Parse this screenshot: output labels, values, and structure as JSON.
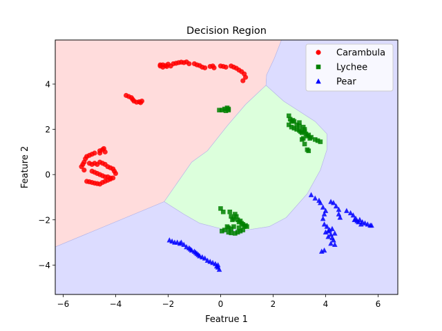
{
  "chart_data": {
    "type": "scatter",
    "title": "Decision Region",
    "xlabel": "Featrue 1",
    "ylabel": "Feature 2",
    "xlim": [
      -6.3,
      6.75
    ],
    "ylim": [
      -5.3,
      5.95
    ],
    "xticks": [
      -6,
      -4,
      -2,
      0,
      2,
      4,
      6
    ],
    "yticks": [
      -4,
      -2,
      0,
      2,
      4
    ],
    "grid": false,
    "legend_position": "top-right",
    "regions": [
      {
        "class": "Carambula",
        "color": "#ffdcdc",
        "polygon": [
          [
            -6.3,
            5.95
          ],
          [
            2.32,
            5.95
          ],
          [
            2.05,
            5.15
          ],
          [
            1.75,
            4.4
          ],
          [
            1.73,
            3.95
          ],
          [
            0.95,
            3.1
          ],
          [
            0.25,
            2.15
          ],
          [
            -0.5,
            1.05
          ],
          [
            -1.1,
            0.55
          ],
          [
            -2.15,
            -1.2
          ],
          [
            -6.3,
            -3.2
          ]
        ]
      },
      {
        "class": "Lychee",
        "color": "#dcffdc",
        "polygon": [
          [
            1.73,
            3.95
          ],
          [
            2.4,
            3.25
          ],
          [
            3.6,
            2.35
          ],
          [
            4.05,
            1.8
          ],
          [
            4.05,
            1.1
          ],
          [
            3.8,
            0.2
          ],
          [
            3.3,
            -0.85
          ],
          [
            2.5,
            -1.9
          ],
          [
            1.85,
            -2.3
          ],
          [
            1.0,
            -2.45
          ],
          [
            0.1,
            -2.42
          ],
          [
            -0.8,
            -2.15
          ],
          [
            -1.4,
            -1.75
          ],
          [
            -2.15,
            -1.2
          ],
          [
            -1.1,
            0.55
          ],
          [
            -0.5,
            1.05
          ],
          [
            0.25,
            2.15
          ],
          [
            0.95,
            3.1
          ]
        ]
      },
      {
        "class": "Pear",
        "color": "#dcdcff",
        "polygon": [
          [
            2.32,
            5.95
          ],
          [
            6.75,
            5.95
          ],
          [
            6.75,
            -5.3
          ],
          [
            -6.3,
            -5.3
          ],
          [
            -6.3,
            -3.2
          ],
          [
            -2.15,
            -1.2
          ],
          [
            -1.4,
            -1.75
          ],
          [
            -0.8,
            -2.15
          ],
          [
            0.1,
            -2.42
          ],
          [
            1.0,
            -2.45
          ],
          [
            1.85,
            -2.3
          ],
          [
            2.5,
            -1.9
          ],
          [
            3.3,
            -0.85
          ],
          [
            3.8,
            0.2
          ],
          [
            4.05,
            1.1
          ],
          [
            4.05,
            1.8
          ],
          [
            3.6,
            2.35
          ],
          [
            2.4,
            3.25
          ],
          [
            1.73,
            3.95
          ],
          [
            1.75,
            4.4
          ],
          [
            2.05,
            5.15
          ]
        ]
      }
    ],
    "series": [
      {
        "name": "Carambula",
        "marker": "circle",
        "color": "#ff0000",
        "points": [
          [
            -2.3,
            4.8
          ],
          [
            -2.2,
            4.85
          ],
          [
            -2.1,
            4.82
          ],
          [
            -2.0,
            4.88
          ],
          [
            -1.9,
            4.8
          ],
          [
            -1.8,
            4.9
          ],
          [
            -1.7,
            4.92
          ],
          [
            -1.6,
            4.95
          ],
          [
            -1.5,
            4.97
          ],
          [
            -1.4,
            4.95
          ],
          [
            -1.3,
            4.98
          ],
          [
            -1.2,
            4.9
          ],
          [
            -1.0,
            4.9
          ],
          [
            -0.9,
            4.85
          ],
          [
            -0.8,
            4.82
          ],
          [
            -0.7,
            4.75
          ],
          [
            -0.6,
            4.72
          ],
          [
            -0.4,
            4.78
          ],
          [
            -0.3,
            4.8
          ],
          [
            -0.25,
            4.72
          ],
          [
            0.0,
            4.8
          ],
          [
            0.1,
            4.78
          ],
          [
            0.2,
            4.75
          ],
          [
            0.4,
            4.8
          ],
          [
            0.5,
            4.75
          ],
          [
            0.6,
            4.7
          ],
          [
            0.7,
            4.62
          ],
          [
            0.8,
            4.55
          ],
          [
            0.9,
            4.45
          ],
          [
            0.95,
            4.3
          ],
          [
            0.85,
            4.15
          ],
          [
            -2.3,
            4.85
          ],
          [
            -2.2,
            4.75
          ],
          [
            -2.05,
            4.78
          ],
          [
            -3.6,
            3.5
          ],
          [
            -3.5,
            3.45
          ],
          [
            -3.4,
            3.4
          ],
          [
            -3.35,
            3.32
          ],
          [
            -3.3,
            3.25
          ],
          [
            -3.2,
            3.2
          ],
          [
            -3.1,
            3.22
          ],
          [
            -3.0,
            3.25
          ],
          [
            -3.05,
            3.18
          ],
          [
            -4.6,
            1.05
          ],
          [
            -4.5,
            1.1
          ],
          [
            -4.45,
            1.15
          ],
          [
            -4.4,
            1.0
          ],
          [
            -4.6,
            0.95
          ],
          [
            -4.8,
            0.95
          ],
          [
            -4.9,
            0.9
          ],
          [
            -5.0,
            0.85
          ],
          [
            -5.1,
            0.8
          ],
          [
            -5.15,
            0.7
          ],
          [
            -5.2,
            0.55
          ],
          [
            -5.25,
            0.45
          ],
          [
            -5.3,
            0.35
          ],
          [
            -5.2,
            0.2
          ],
          [
            -5.0,
            0.5
          ],
          [
            -4.9,
            0.45
          ],
          [
            -4.8,
            0.5
          ],
          [
            -4.7,
            0.45
          ],
          [
            -4.6,
            0.55
          ],
          [
            -4.5,
            0.5
          ],
          [
            -4.4,
            0.45
          ],
          [
            -4.3,
            0.35
          ],
          [
            -4.2,
            0.3
          ],
          [
            -4.1,
            0.25
          ],
          [
            -4.05,
            0.15
          ],
          [
            -4.0,
            0.05
          ],
          [
            -4.9,
            0.15
          ],
          [
            -4.8,
            0.1
          ],
          [
            -4.7,
            0.05
          ],
          [
            -4.6,
            0.0
          ],
          [
            -4.5,
            -0.05
          ],
          [
            -4.4,
            -0.1
          ],
          [
            -4.3,
            -0.1
          ],
          [
            -4.2,
            -0.15
          ],
          [
            -5.1,
            -0.3
          ],
          [
            -5.0,
            -0.32
          ],
          [
            -4.9,
            -0.35
          ],
          [
            -4.8,
            -0.38
          ],
          [
            -4.7,
            -0.4
          ],
          [
            -4.6,
            -0.42
          ],
          [
            -4.5,
            -0.35
          ],
          [
            -4.4,
            -0.3
          ],
          [
            -4.3,
            -0.25
          ],
          [
            -4.2,
            -0.2
          ],
          [
            -4.1,
            -0.15
          ]
        ]
      },
      {
        "name": "Lychee",
        "marker": "square",
        "color": "#008000",
        "points": [
          [
            -0.05,
            2.85
          ],
          [
            0.05,
            2.85
          ],
          [
            0.15,
            2.9
          ],
          [
            0.25,
            2.95
          ],
          [
            0.3,
            2.9
          ],
          [
            0.2,
            2.82
          ],
          [
            0.3,
            2.85
          ],
          [
            2.6,
            2.6
          ],
          [
            2.65,
            2.45
          ],
          [
            2.7,
            2.35
          ],
          [
            2.6,
            2.2
          ],
          [
            2.7,
            2.1
          ],
          [
            2.8,
            2.05
          ],
          [
            2.9,
            2.0
          ],
          [
            3.0,
            1.95
          ],
          [
            3.05,
            1.9
          ],
          [
            3.1,
            1.85
          ],
          [
            3.15,
            2.1
          ],
          [
            3.2,
            2.0
          ],
          [
            3.25,
            1.8
          ],
          [
            3.3,
            1.7
          ],
          [
            3.35,
            1.75
          ],
          [
            3.4,
            1.6
          ],
          [
            3.45,
            1.65
          ],
          [
            3.6,
            1.55
          ],
          [
            3.7,
            1.5
          ],
          [
            3.8,
            1.45
          ],
          [
            3.1,
            1.55
          ],
          [
            3.2,
            1.35
          ],
          [
            3.3,
            1.1
          ],
          [
            3.35,
            1.05
          ],
          [
            2.8,
            2.35
          ],
          [
            2.9,
            2.2
          ],
          [
            3.0,
            2.3
          ],
          [
            3.2,
            1.9
          ],
          [
            2.75,
            2.4
          ],
          [
            3.15,
            1.6
          ],
          [
            3.0,
            2.15
          ],
          [
            0.0,
            -1.5
          ],
          [
            0.1,
            -1.65
          ],
          [
            0.35,
            -1.65
          ],
          [
            0.4,
            -1.85
          ],
          [
            0.45,
            -2.0
          ],
          [
            0.5,
            -1.95
          ],
          [
            0.55,
            -1.75
          ],
          [
            0.6,
            -1.85
          ],
          [
            0.65,
            -2.0
          ],
          [
            0.7,
            -2.1
          ],
          [
            0.75,
            -2.05
          ],
          [
            0.8,
            -2.15
          ],
          [
            0.85,
            -2.2
          ],
          [
            0.9,
            -2.3
          ],
          [
            0.95,
            -2.25
          ],
          [
            1.0,
            -2.3
          ],
          [
            0.05,
            -2.5
          ],
          [
            0.15,
            -2.45
          ],
          [
            0.3,
            -2.55
          ],
          [
            0.4,
            -2.58
          ],
          [
            0.55,
            -2.6
          ],
          [
            0.65,
            -2.55
          ],
          [
            0.75,
            -2.5
          ],
          [
            0.85,
            -2.45
          ],
          [
            0.3,
            -2.35
          ],
          [
            0.25,
            -2.3
          ],
          [
            0.4,
            -2.4
          ],
          [
            0.5,
            -2.3
          ],
          [
            0.7,
            -2.35
          ]
        ]
      },
      {
        "name": "Pear",
        "marker": "triangle",
        "color": "#0000ff",
        "points": [
          [
            -1.95,
            -2.9
          ],
          [
            -1.85,
            -2.95
          ],
          [
            -1.75,
            -3.0
          ],
          [
            -1.65,
            -3.0
          ],
          [
            -1.55,
            -3.05
          ],
          [
            -1.5,
            -3.0
          ],
          [
            -1.4,
            -3.1
          ],
          [
            -1.3,
            -3.2
          ],
          [
            -1.2,
            -3.25
          ],
          [
            -1.15,
            -3.3
          ],
          [
            -1.1,
            -3.35
          ],
          [
            -1.0,
            -3.4
          ],
          [
            -0.95,
            -3.45
          ],
          [
            -0.9,
            -3.5
          ],
          [
            -0.85,
            -3.55
          ],
          [
            -0.8,
            -3.6
          ],
          [
            -0.7,
            -3.65
          ],
          [
            -0.6,
            -3.7
          ],
          [
            -0.5,
            -3.8
          ],
          [
            -0.4,
            -3.85
          ],
          [
            -0.3,
            -3.9
          ],
          [
            -0.2,
            -3.95
          ],
          [
            -0.15,
            -4.05
          ],
          [
            -0.1,
            -4.1
          ],
          [
            -0.05,
            -4.2
          ],
          [
            -0.1,
            -4.0
          ],
          [
            3.45,
            -0.9
          ],
          [
            3.6,
            -1.05
          ],
          [
            3.75,
            -1.15
          ],
          [
            3.8,
            -1.25
          ],
          [
            3.9,
            -1.45
          ],
          [
            4.0,
            -1.6
          ],
          [
            4.2,
            -1.2
          ],
          [
            4.3,
            -1.25
          ],
          [
            4.4,
            -1.4
          ],
          [
            4.5,
            -1.55
          ],
          [
            4.5,
            -1.75
          ],
          [
            4.55,
            -1.9
          ],
          [
            3.95,
            -1.75
          ],
          [
            3.9,
            -1.95
          ],
          [
            3.95,
            -2.2
          ],
          [
            4.05,
            -2.3
          ],
          [
            4.1,
            -2.5
          ],
          [
            4.15,
            -2.45
          ],
          [
            4.2,
            -2.65
          ],
          [
            4.25,
            -2.8
          ],
          [
            4.3,
            -2.9
          ],
          [
            4.2,
            -3.05
          ],
          [
            4.1,
            -2.75
          ],
          [
            4.0,
            -2.55
          ],
          [
            3.95,
            -3.35
          ],
          [
            3.85,
            -3.4
          ],
          [
            4.35,
            -2.6
          ],
          [
            4.25,
            -2.4
          ],
          [
            4.35,
            -3.1
          ],
          [
            4.8,
            -1.6
          ],
          [
            4.95,
            -1.7
          ],
          [
            5.05,
            -1.8
          ],
          [
            5.1,
            -2.0
          ],
          [
            5.2,
            -2.05
          ],
          [
            5.15,
            -1.95
          ],
          [
            5.3,
            -2.0
          ],
          [
            5.4,
            -2.1
          ],
          [
            5.5,
            -2.15
          ],
          [
            5.6,
            -2.2
          ],
          [
            5.7,
            -2.25
          ],
          [
            5.75,
            -2.25
          ],
          [
            5.25,
            -2.1
          ],
          [
            5.35,
            -2.2
          ]
        ]
      }
    ]
  }
}
